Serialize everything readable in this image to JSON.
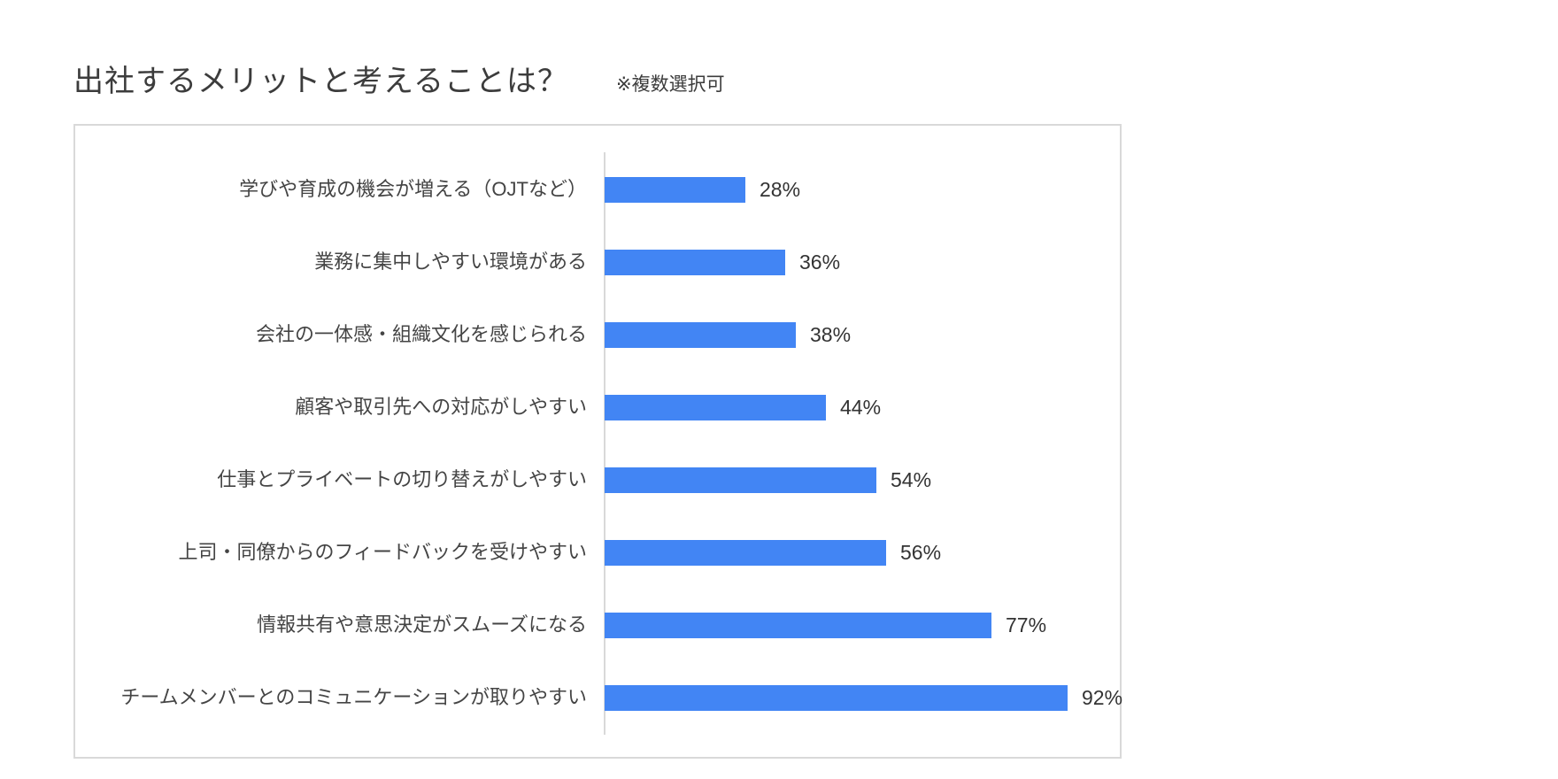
{
  "header": {
    "title": "出社するメリットと考えることは？",
    "note": "※複数選択可"
  },
  "style": {
    "bar_color": "#4285f4",
    "axis_color": "#d9d9d9",
    "frame_color": "#d9d9d9"
  },
  "chart_data": {
    "type": "bar",
    "orientation": "horizontal",
    "title": "出社するメリットと考えることは？",
    "subtitle": "※複数選択可",
    "categories": [
      "学びや育成の機会が増える（OJTなど）",
      "業務に集中しやすい環境がある",
      "会社の一体感・組織文化を感じられる",
      "顧客や取引先への対応がしやすい",
      "仕事とプライベートの切り替えがしやすい",
      "上司・同僚からのフィードバックを受けやすい",
      "情報共有や意思決定がスムーズになる",
      "チームメンバーとのコミュニケーションが取りやすい"
    ],
    "values": [
      28,
      36,
      38,
      44,
      54,
      56,
      77,
      92
    ],
    "value_labels": [
      "28%",
      "36%",
      "38%",
      "44%",
      "54%",
      "56%",
      "77%",
      "92%"
    ],
    "xlabel": "",
    "ylabel": "",
    "xlim": [
      0,
      100
    ],
    "unit": "%",
    "grid": false,
    "legend": null
  }
}
